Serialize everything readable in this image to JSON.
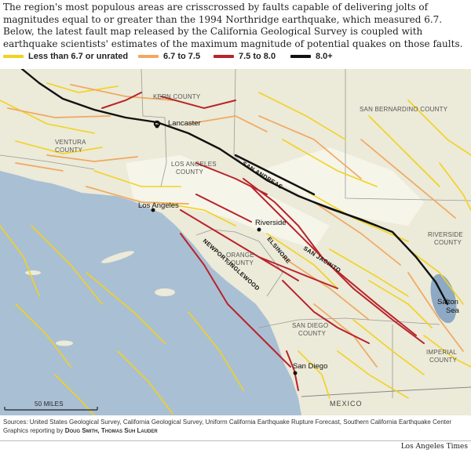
{
  "intro": {
    "text": "The region's most populous areas are crisscrossed by faults capable of delivering jolts of magnitudes equal to or greater than the 1994 Northridge earthquake, which measured 6.7. Below, the latest fault map released by the California Geological Survey is coupled with earthquake scientists' estimates of the maximum magnitude of potential quakes on those faults."
  },
  "legend": {
    "items": [
      {
        "label": "Less than 6.7 or unrated",
        "color": "#f2d21e"
      },
      {
        "label": "6.7 to 7.5",
        "color": "#f0a862"
      },
      {
        "label": "7.5 to 8.0",
        "color": "#b8232b"
      },
      {
        "label": "8.0+",
        "color": "#111111"
      }
    ]
  },
  "map": {
    "colors": {
      "ocean": "#a9bfd4",
      "land": "#ecead8",
      "urban": "#f6f5ea",
      "border": "#9a9a9a",
      "lake": "#8ea9c4"
    },
    "counties": [
      {
        "name": "KERN COUNTY"
      },
      {
        "name": "VENTURA"
      },
      {
        "name": "COUNTY"
      },
      {
        "name": "LOS ANGELES"
      },
      {
        "name": "COUNTY"
      },
      {
        "name": "SAN BERNARDINO COUNTY"
      },
      {
        "name": "ORANGE"
      },
      {
        "name": "COUNTY"
      },
      {
        "name": "RIVERSIDE"
      },
      {
        "name": "COUNTY"
      },
      {
        "name": "SAN DIEGO"
      },
      {
        "name": "COUNTY"
      },
      {
        "name": "IMPERIAL"
      },
      {
        "name": "COUNTY"
      }
    ],
    "cities": [
      "Lancaster",
      "Los Angeles",
      "Riverside",
      "San Diego",
      "Salton",
      "Sea"
    ],
    "faults": [
      "SAN ANDREAS",
      "SAN JACINTO",
      "ELSINORE",
      "NEWPORT-INGLEWOOD"
    ],
    "country": "MEXICO",
    "scale_label": "50 MILES"
  },
  "footer": {
    "sources": "Sources: United States Geological Survey, California Geological Survey, Uniform California Earthquake Rupture Forecast, Southern California Earthquake Center",
    "reporting_prefix": "Graphics reporting by",
    "reporting_names": "Doug Smith, Thomas Suh Lauder"
  },
  "credit": "Los Angeles Times"
}
